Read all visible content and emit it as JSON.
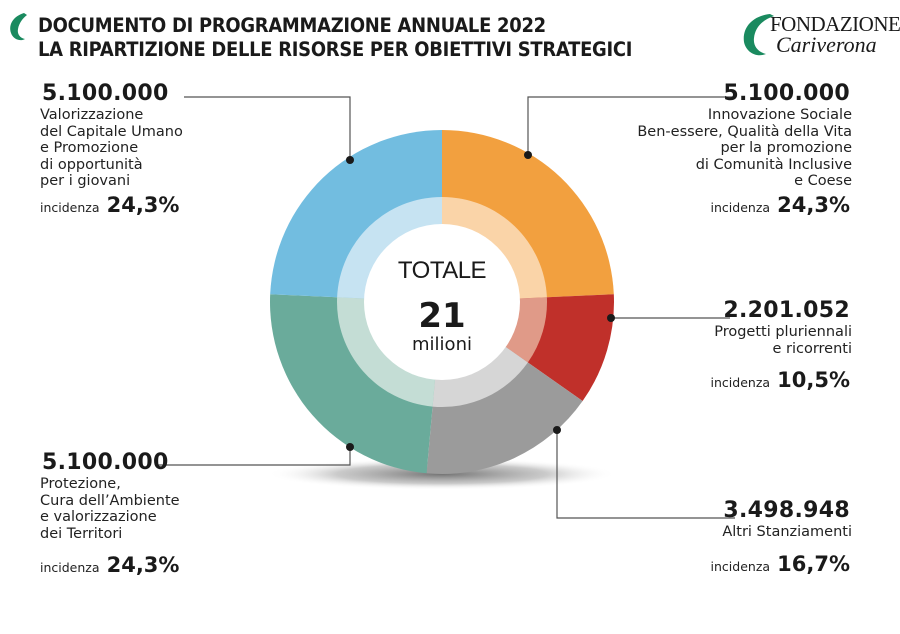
{
  "header": {
    "title_line1": "DOCUMENTO DI PROGRAMMAZIONE ANNUALE 2022",
    "title_line2": "LA RIPARTIZIONE DELLE RISORSE PER OBIETTIVI STRATEGICI",
    "logo_line1": "FONDAZIONE",
    "logo_line2": "Cariverona",
    "brand_color": "#1a8a5f"
  },
  "center": {
    "label": "TOTALE",
    "value": "21",
    "unit": "milioni"
  },
  "incidence_label": "incidenza",
  "chart_data": {
    "type": "pie",
    "variant": "donut",
    "title": "LA RIPARTIZIONE DELLE RISORSE PER OBIETTIVI STRATEGICI",
    "total_label": "TOTALE 21 milioni",
    "start": "top",
    "direction": "clockwise",
    "slices": [
      {
        "key": "innovazione",
        "amount": "5.100.000",
        "value": 5100000,
        "percent": 24.3,
        "percent_label": "24,3%",
        "description": [
          "Innovazione Sociale",
          "Ben-essere, Qualità della Vita",
          "per la promozione",
          "di Comunità Inclusive",
          "e Coese"
        ],
        "color": "#f2a03f",
        "inner_color": "#fad4a8",
        "highlight": "#f2a03f"
      },
      {
        "key": "progetti",
        "amount": "2.201.052",
        "value": 2201052,
        "percent": 10.5,
        "percent_label": "10,5%",
        "description": [
          "Progetti pluriennali",
          "e ricorrenti"
        ],
        "color": "#c0302a",
        "inner_color": "#e09a88",
        "highlight": "#d9806a"
      },
      {
        "key": "altri",
        "amount": "3.498.948",
        "value": 3498948,
        "percent": 16.7,
        "percent_label": "16,7%",
        "description": [
          "Altri Stanziamenti"
        ],
        "color": "#9b9b9b",
        "inner_color": "#d6d6d6",
        "highlight": "#dcdcdc"
      },
      {
        "key": "protezione",
        "amount": "5.100.000",
        "value": 5100000,
        "percent": 24.3,
        "percent_label": "24,3%",
        "description": [
          "Protezione,",
          "Cura dell’Ambiente",
          "e valorizzazione",
          "dei Territori"
        ],
        "color": "#6aab9b",
        "inner_color": "#c4ddd5",
        "highlight": "#6aab9b"
      },
      {
        "key": "capitale_umano",
        "amount": "5.100.000",
        "value": 5100000,
        "percent": 24.3,
        "percent_label": "24,3%",
        "description": [
          "Valorizzazione",
          "del Capitale Umano",
          "e Promozione",
          "di opportunità",
          "per i giovani"
        ],
        "color": "#72bde0",
        "inner_color": "#c6e3f2",
        "highlight": "#72bde0"
      }
    ]
  }
}
